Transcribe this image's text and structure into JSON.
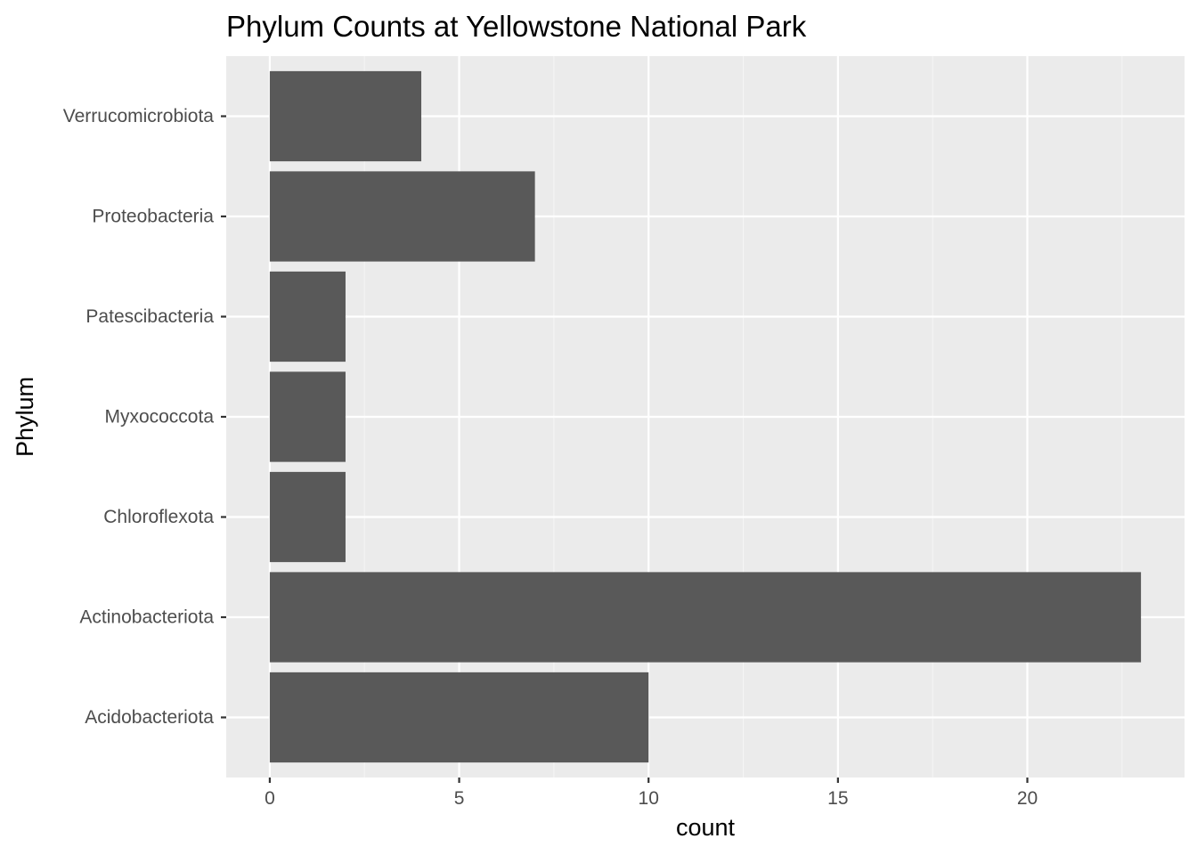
{
  "chart_data": {
    "type": "bar",
    "orientation": "horizontal",
    "title": "Phylum Counts at Yellowstone National Park",
    "xlabel": "count",
    "ylabel": "Phylum",
    "categories": [
      "Acidobacteriota",
      "Actinobacteriota",
      "Chloroflexota",
      "Myxococcota",
      "Patescibacteria",
      "Proteobacteria",
      "Verrucomicrobiota"
    ],
    "values": [
      10,
      23,
      2,
      2,
      2,
      7,
      4
    ],
    "xlim": [
      -1.15,
      24.15
    ],
    "xticks": [
      0,
      5,
      10,
      15,
      20
    ],
    "xtick_labels": [
      "0",
      "5",
      "10",
      "15",
      "20"
    ],
    "grid": true,
    "legend": "none",
    "colors": {
      "bar": "#595959",
      "panel_background": "#ebebeb",
      "grid_major": "#ffffff",
      "grid_minor": "#f5f5f5",
      "tick_label": "#4d4d4d",
      "tick_mark": "#333333",
      "text": "#000000"
    }
  }
}
